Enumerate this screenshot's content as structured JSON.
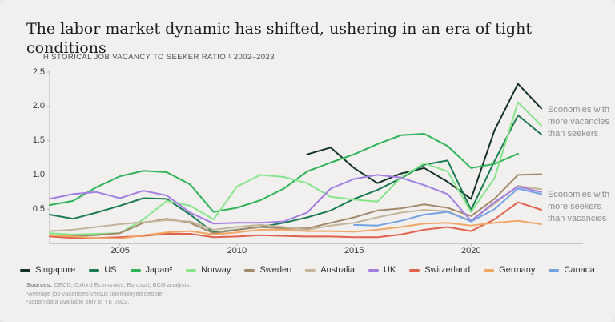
{
  "header": {
    "title": "The labor market dynamic has shifted, ushering in an era of tight conditions",
    "subtitle": "HISTORICAL JOB VACANCY TO SEEKER RATIO,¹ 2002–2023"
  },
  "annotations": {
    "above_line": "Economies with more vacancies than seekers",
    "below_line": "Economies with more seekers than vacancies"
  },
  "footer": {
    "sources_label": "Sources:",
    "sources_text": " OECD; Oxford Economics; Eurostat; BCG analysis.",
    "note1": "¹Average job vacancies versus unemployed people.",
    "note2": "²Japan data available only to YE 2022."
  },
  "chart_data": {
    "type": "line",
    "title": "Historical job vacancy to seeker ratio, 2002-2023",
    "x_axis": {
      "start": 2002,
      "end": 2023,
      "tick_labels": [
        "2005",
        "2010",
        "2015",
        "2020"
      ],
      "tick_years": [
        2005,
        2010,
        2015,
        2020
      ]
    },
    "y_axis": {
      "min": 0,
      "max": 2.5,
      "tick_labels": [
        "2.5",
        "2.0",
        "1.5",
        "1.0",
        "0.5"
      ],
      "tick_values": [
        2.5,
        2.0,
        1.5,
        1.0,
        0.5
      ]
    },
    "gridline_value": 1.0,
    "legend_position": "bottom",
    "colors": {
      "background": "#f1f0ee",
      "gridline": "#d9d7d3",
      "axis": "#b8b6b2",
      "bottom_axis": "#c9c7c3"
    },
    "series": [
      {
        "name": "Singapore",
        "label": "Singapore",
        "color": "#143229",
        "start_year": 2013,
        "values": [
          1.3,
          1.4,
          1.1,
          0.88,
          1.02,
          1.1,
          0.9,
          0.65,
          1.65,
          2.33,
          1.97
        ]
      },
      {
        "name": "US",
        "label": "US",
        "color": "#1a7a52",
        "start_year": 2002,
        "values": [
          0.42,
          0.36,
          0.45,
          0.55,
          0.66,
          0.65,
          0.42,
          0.16,
          0.2,
          0.24,
          0.3,
          0.38,
          0.48,
          0.65,
          0.78,
          0.95,
          1.15,
          1.21,
          0.49,
          1.2,
          1.87,
          1.59
        ]
      },
      {
        "name": "Japan",
        "label": "Japan²",
        "color": "#2eb358",
        "start_year": 2002,
        "values": [
          0.56,
          0.62,
          0.82,
          0.98,
          1.06,
          1.04,
          0.86,
          0.46,
          0.52,
          0.63,
          0.8,
          1.05,
          1.18,
          1.3,
          1.45,
          1.58,
          1.6,
          1.42,
          1.1,
          1.16,
          1.31
        ]
      },
      {
        "name": "Norway",
        "label": "Norway",
        "color": "#86e58b",
        "start_year": 2002,
        "values": [
          0.15,
          0.13,
          0.14,
          0.15,
          0.35,
          0.62,
          0.55,
          0.35,
          0.83,
          1.0,
          0.97,
          0.88,
          0.68,
          0.64,
          0.61,
          0.96,
          1.17,
          1.05,
          0.46,
          0.95,
          2.06,
          1.72
        ]
      },
      {
        "name": "Sweden",
        "label": "Sweden",
        "color": "#a18a6a",
        "start_year": 2002,
        "values": [
          0.12,
          0.11,
          0.12,
          0.15,
          0.3,
          0.36,
          0.3,
          0.15,
          0.2,
          0.24,
          0.22,
          0.22,
          0.3,
          0.38,
          0.48,
          0.51,
          0.57,
          0.52,
          0.4,
          0.65,
          1.0,
          1.01
        ]
      },
      {
        "name": "Australia",
        "label": "Australia",
        "color": "#c3b49a",
        "start_year": 2002,
        "values": [
          0.18,
          0.2,
          0.24,
          0.28,
          0.31,
          0.34,
          0.32,
          0.2,
          0.24,
          0.27,
          0.24,
          0.2,
          0.26,
          0.3,
          0.38,
          0.45,
          0.49,
          0.47,
          0.33,
          0.58,
          0.84,
          0.79
        ]
      },
      {
        "name": "UK",
        "label": "UK",
        "color": "#a37fe1",
        "start_year": 2002,
        "values": [
          0.65,
          0.72,
          0.75,
          0.66,
          0.77,
          0.7,
          0.45,
          0.29,
          0.3,
          0.3,
          0.32,
          0.45,
          0.8,
          0.94,
          1.0,
          0.96,
          0.85,
          0.72,
          0.33,
          0.6,
          0.83,
          0.75
        ]
      },
      {
        "name": "Switzerland",
        "label": "Switzerland",
        "color": "#e0614c",
        "start_year": 2002,
        "values": [
          0.1,
          0.08,
          0.08,
          0.09,
          0.11,
          0.14,
          0.14,
          0.09,
          0.1,
          0.12,
          0.11,
          0.1,
          0.1,
          0.09,
          0.09,
          0.13,
          0.2,
          0.24,
          0.18,
          0.35,
          0.6,
          0.49
        ]
      },
      {
        "name": "Germany",
        "label": "Germany",
        "color": "#f0a765",
        "start_year": 2002,
        "values": [
          0.12,
          0.1,
          0.08,
          0.07,
          0.12,
          0.16,
          0.18,
          0.13,
          0.16,
          0.2,
          0.2,
          0.18,
          0.18,
          0.17,
          0.2,
          0.24,
          0.29,
          0.3,
          0.26,
          0.3,
          0.33,
          0.28
        ]
      },
      {
        "name": "Canada",
        "label": "Canada",
        "color": "#74a3e3",
        "start_year": 2015,
        "values": [
          0.27,
          0.26,
          0.33,
          0.42,
          0.46,
          0.32,
          0.5,
          0.8,
          0.72
        ]
      }
    ]
  }
}
